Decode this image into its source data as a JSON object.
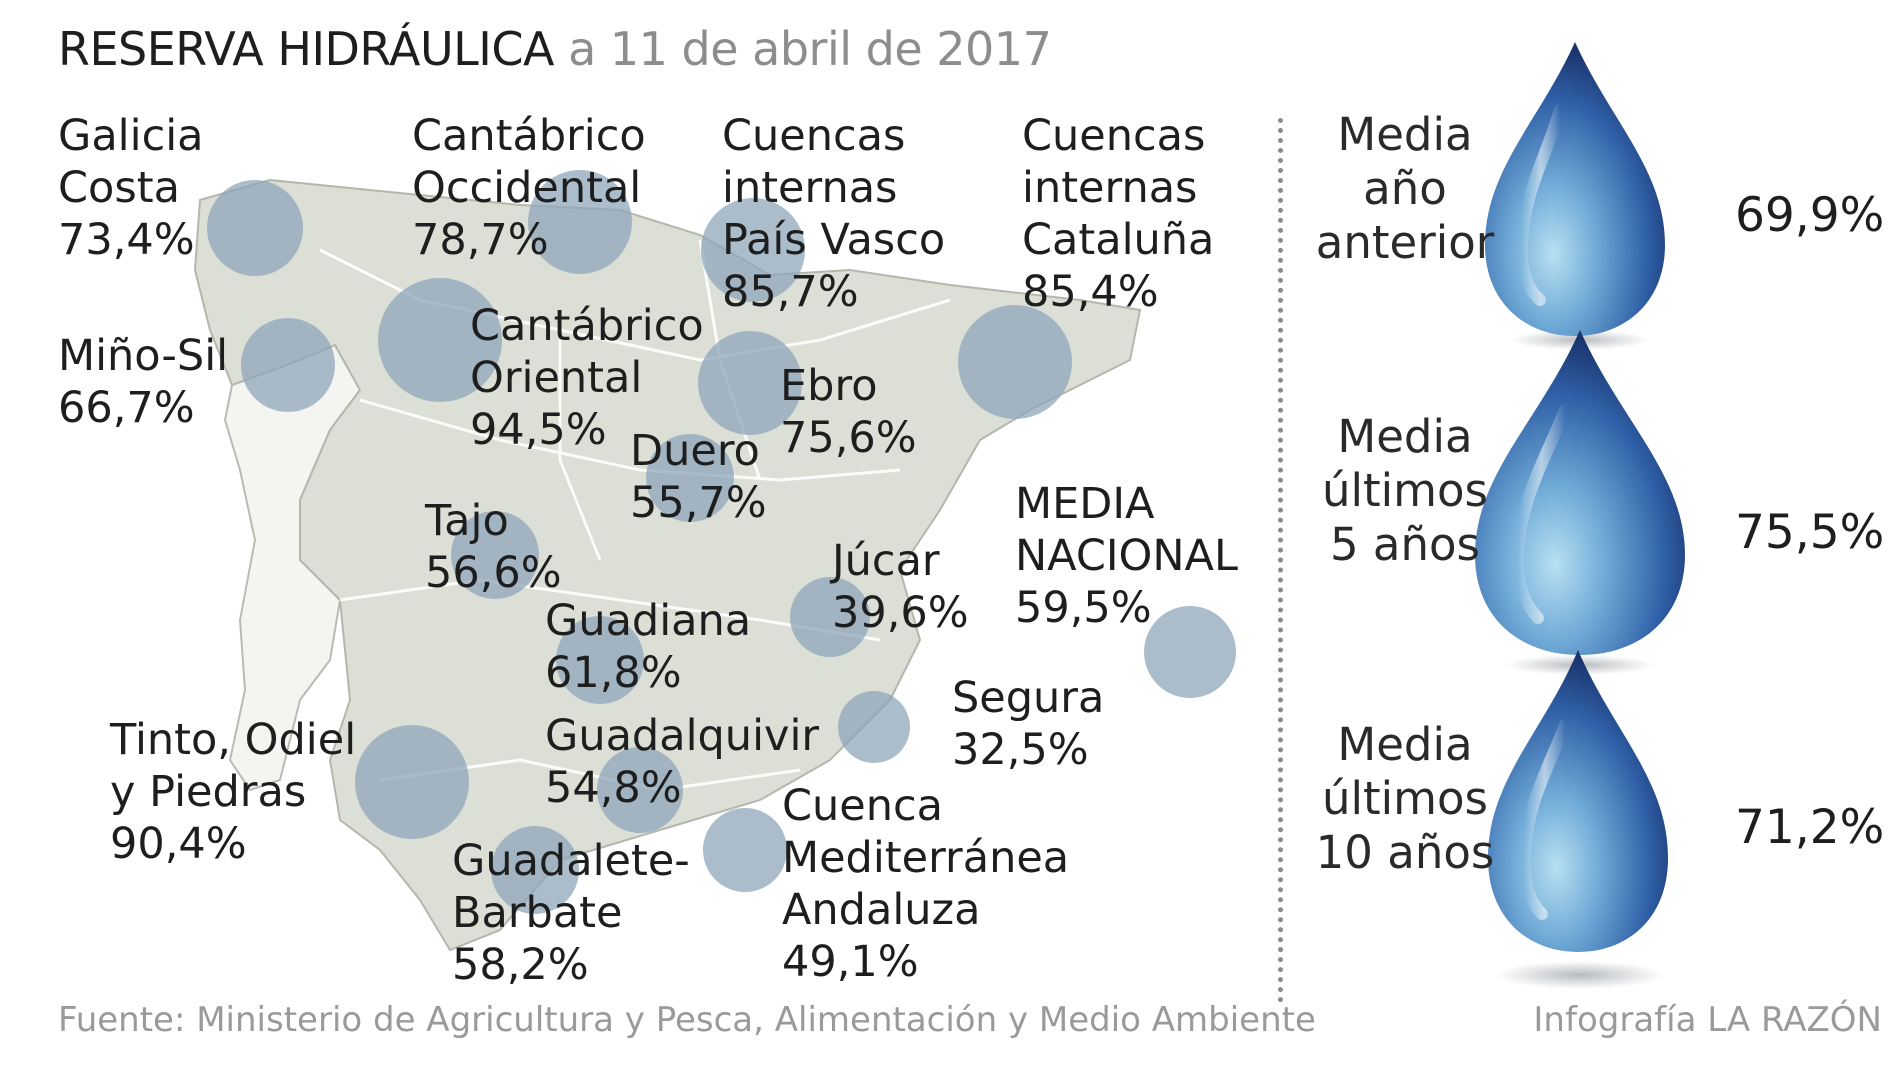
{
  "title": {
    "main": "RESERVA HIDRÁULICA",
    "date": "a 11 de abril de 2017"
  },
  "basins": [
    {
      "id": "galicia-costa",
      "lines": [
        "Galicia",
        "Costa"
      ],
      "value": "73,4%"
    },
    {
      "id": "cantabrico-occidental",
      "lines": [
        "Cantábrico",
        "Occidental"
      ],
      "value": "78,7%"
    },
    {
      "id": "pais-vasco",
      "lines": [
        "Cuencas",
        "internas",
        "País Vasco"
      ],
      "value": "85,7%"
    },
    {
      "id": "cataluna",
      "lines": [
        "Cuencas",
        "internas",
        "Cataluña"
      ],
      "value": "85,4%"
    },
    {
      "id": "mino-sil",
      "lines": [
        "Miño-Sil"
      ],
      "value": "66,7%"
    },
    {
      "id": "cantabrico-oriental",
      "lines": [
        "Cantábrico",
        "Oriental"
      ],
      "value": "94,5%"
    },
    {
      "id": "ebro",
      "lines": [
        "Ebro"
      ],
      "value": "75,6%"
    },
    {
      "id": "duero",
      "lines": [
        "Duero"
      ],
      "value": "55,7%"
    },
    {
      "id": "tajo",
      "lines": [
        "Tajo"
      ],
      "value": "56,6%"
    },
    {
      "id": "media-nacional",
      "lines": [
        "MEDIA",
        "NACIONAL"
      ],
      "value": "59,5%"
    },
    {
      "id": "jucar",
      "lines": [
        "Júcar"
      ],
      "value": "39,6%"
    },
    {
      "id": "guadiana",
      "lines": [
        "Guadiana"
      ],
      "value": "61,8%"
    },
    {
      "id": "segura",
      "lines": [
        "Segura"
      ],
      "value": "32,5%"
    },
    {
      "id": "tinto-odiel",
      "lines": [
        "Tinto, Odiel",
        "y Piedras"
      ],
      "value": "90,4%"
    },
    {
      "id": "guadalquivir",
      "lines": [
        "Guadalquivir"
      ],
      "value": "54,8%"
    },
    {
      "id": "mediterranea-andaluza",
      "lines": [
        "Cuenca",
        "Mediterránea",
        "Andaluza"
      ],
      "value": "49,1%"
    },
    {
      "id": "guadalete-barbate",
      "lines": [
        "Guadalete-",
        "Barbate"
      ],
      "value": "58,2%"
    }
  ],
  "averages": [
    {
      "id": "anio-anterior",
      "lines": [
        "Media",
        "año",
        "anterior"
      ],
      "value": "69,9%"
    },
    {
      "id": "ultimos-5",
      "lines": [
        "Media",
        "últimos",
        "5 años"
      ],
      "value": "75,5%"
    },
    {
      "id": "ultimos-10",
      "lines": [
        "Media",
        "últimos",
        "10 años"
      ],
      "value": "71,2%"
    }
  ],
  "source": "Fuente: Ministerio de Agricultura y Pesca, Alimentación y Medio Ambiente",
  "credit": "Infografía LA RAZÓN",
  "colors": {
    "circle": "#8fa6ba",
    "map_land": "#dcdfd6",
    "map_portugal": "#f4f5f1",
    "drop_dark": "#1f3f7a",
    "drop_light": "#a9d6ee"
  }
}
